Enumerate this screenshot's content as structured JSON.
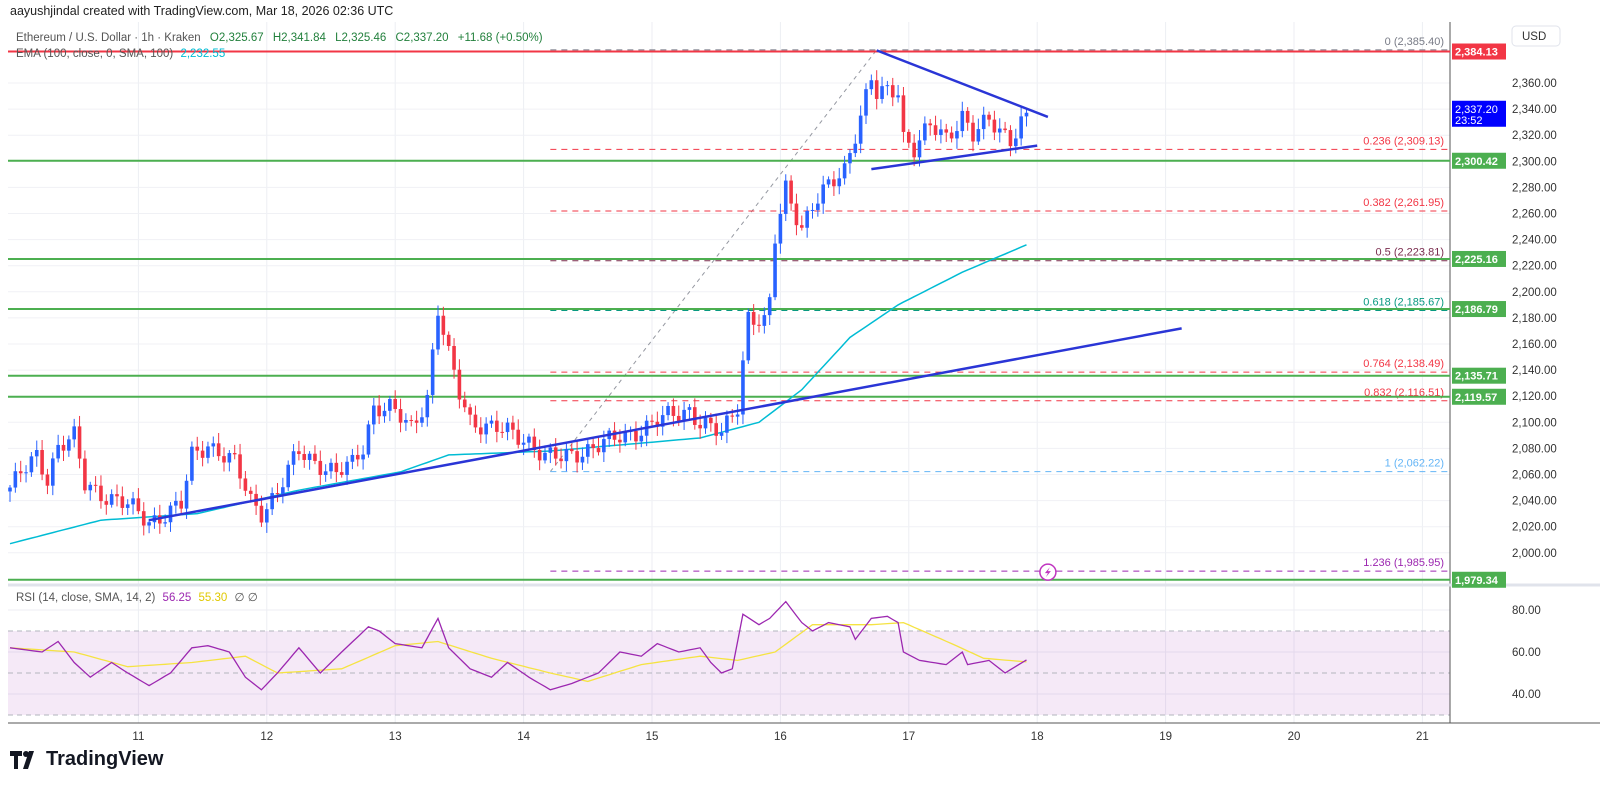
{
  "credit": "aayushjindal created with TradingView.com, Mar 18, 2026 02:36 UTC",
  "legend": {
    "symbol": "Ethereum / U.S. Dollar · 1h · Kraken",
    "open": "O2,325.67",
    "high": "H2,341.84",
    "low": "L2,325.46",
    "close": "C2,337.20",
    "change": "+11.68 (+0.50%)",
    "ema_label": "EMA (100, close, 0, SMA, 100)",
    "ema_value": "2,232.55",
    "rsi_label": "RSI (14, close, SMA, 14, 2)",
    "rsi_value": "56.25",
    "rsi_sma_value": "55.30",
    "rsi_extra": "∅ ∅"
  },
  "currency": "USD",
  "current_price": {
    "price": "2,337.20",
    "countdown": "23:52"
  },
  "logo_text": "TradingView",
  "colors": {
    "up": "#2962ff",
    "down": "#f23645",
    "ema": "#00bcd4",
    "rsi": "#9c27b0",
    "rsi_sma": "#f5e342",
    "support": "#4caf50",
    "trendline": "#2a35d6"
  },
  "chart_data": {
    "type": "candlestick",
    "interval": "1h",
    "price_axis": {
      "range": [
        1975,
        2395
      ],
      "ticks": [
        "2,360.00",
        "2,340.00",
        "2,320.00",
        "2,300.00",
        "2,280.00",
        "2,260.00",
        "2,240.00",
        "2,220.00",
        "2,200.00",
        "2,180.00",
        "2,160.00",
        "2,140.00",
        "2,120.00",
        "2,100.00",
        "2,080.00",
        "2,060.00",
        "2,040.00",
        "2,020.00",
        "2,000.00"
      ]
    },
    "x_ticks": [
      "11",
      "12",
      "13",
      "14",
      "15",
      "16",
      "17",
      "18",
      "19",
      "20",
      "21"
    ],
    "close_path": [
      [
        "10 04:00",
        2050
      ],
      [
        "10 09:00",
        2074
      ],
      [
        "10 11:00",
        2058
      ],
      [
        "10 13:00",
        2082
      ],
      [
        "10 16:00",
        2088
      ],
      [
        "10 18:00",
        2052
      ],
      [
        "10 21:00",
        2046
      ],
      [
        "11 02:00",
        2036
      ],
      [
        "11 06:00",
        2024
      ],
      [
        "11 12:00",
        2036
      ],
      [
        "11 14:00",
        2074
      ],
      [
        "11 17:00",
        2084
      ],
      [
        "11 22:00",
        2068
      ],
      [
        "12 01:00",
        2040
      ],
      [
        "12 03:00",
        2032
      ],
      [
        "12 06:00",
        2046
      ],
      [
        "12 10:00",
        2078
      ],
      [
        "12 14:00",
        2068
      ],
      [
        "12 17:00",
        2060
      ],
      [
        "12 20:00",
        2068
      ],
      [
        "12 22:00",
        2082
      ],
      [
        "13 00:00",
        2112
      ],
      [
        "13 03:00",
        2110
      ],
      [
        "13 07:00",
        2096
      ],
      [
        "13 10:00",
        2120
      ],
      [
        "13 12:00",
        2186
      ],
      [
        "13 14:00",
        2150
      ],
      [
        "13 16:00",
        2122
      ],
      [
        "13 18:00",
        2102
      ],
      [
        "13 22:00",
        2096
      ],
      [
        "14 01:00",
        2092
      ],
      [
        "14 05:00",
        2086
      ],
      [
        "14 08:00",
        2074
      ],
      [
        "14 11:00",
        2072
      ],
      [
        "14 16:00",
        2080
      ],
      [
        "14 20:00",
        2085
      ],
      [
        "15 02:00",
        2095
      ],
      [
        "15 07:00",
        2104
      ],
      [
        "15 11:00",
        2110
      ],
      [
        "15 13:00",
        2100
      ],
      [
        "15 17:00",
        2090
      ],
      [
        "15 20:00",
        2114
      ],
      [
        "15 22:00",
        2182
      ],
      [
        "16 01:00",
        2175
      ],
      [
        "16 02:00",
        2190
      ],
      [
        "16 03:00",
        2240
      ],
      [
        "16 05:00",
        2280
      ],
      [
        "16 08:00",
        2250
      ],
      [
        "16 10:00",
        2265
      ],
      [
        "16 13:00",
        2280
      ],
      [
        "16 16:00",
        2295
      ],
      [
        "16 18:00",
        2322
      ],
      [
        "16 21:00",
        2362
      ],
      [
        "16 22:00",
        2350
      ],
      [
        "17 02:00",
        2356
      ],
      [
        "17 03:00",
        2320
      ],
      [
        "17 05:00",
        2310
      ],
      [
        "17 08:00",
        2326
      ],
      [
        "17 11:00",
        2318
      ],
      [
        "17 14:00",
        2336
      ],
      [
        "17 16:00",
        2320
      ],
      [
        "17 19:00",
        2330
      ],
      [
        "17 23:00",
        2318
      ],
      [
        "18 02:00",
        2337.2
      ]
    ],
    "ema100_path": [
      [
        "10 04:00",
        2007
      ],
      [
        "10 21:00",
        2025
      ],
      [
        "11 15:00",
        2030
      ],
      [
        "12 10:00",
        2048
      ],
      [
        "13 05:00",
        2062
      ],
      [
        "13 14:00",
        2075
      ],
      [
        "14 09:00",
        2078
      ],
      [
        "15 13:00",
        2088
      ],
      [
        "16 00:00",
        2100
      ],
      [
        "16 08:00",
        2125
      ],
      [
        "16 17:00",
        2165
      ],
      [
        "17 02:00",
        2190
      ],
      [
        "17 14:00",
        2215
      ],
      [
        "18 02:00",
        2236
      ]
    ],
    "horizontal_levels": [
      {
        "price": 2384.13,
        "label": "2,384.13",
        "color": "#f23645"
      },
      {
        "price": 2300.42,
        "label": "2,300.42",
        "color": "#4caf50"
      },
      {
        "price": 2225.16,
        "label": "2,225.16",
        "color": "#4caf50"
      },
      {
        "price": 2186.79,
        "label": "2,186.79",
        "color": "#4caf50"
      },
      {
        "price": 2135.71,
        "label": "2,135.71",
        "color": "#4caf50"
      },
      {
        "price": 2119.57,
        "label": "2,119.57",
        "color": "#4caf50"
      },
      {
        "price": 1979.34,
        "label": "1,979.34",
        "color": "#4caf50"
      }
    ],
    "fibonacci": {
      "from": [
        "14 09:00",
        2062.22
      ],
      "to": [
        "16 22:00",
        2385.4
      ],
      "levels": [
        {
          "ratio": "0",
          "price": 2385.4,
          "label": "0 (2,385.40)",
          "color": "#787b86"
        },
        {
          "ratio": "0.236",
          "price": 2309.13,
          "label": "0.236 (2,309.13)",
          "color": "#f23645"
        },
        {
          "ratio": "0.382",
          "price": 2261.95,
          "label": "0.382 (2,261.95)",
          "color": "#f23645"
        },
        {
          "ratio": "0.5",
          "price": 2223.81,
          "label": "0.5 (2,223.81)",
          "color": "#7b2d4f"
        },
        {
          "ratio": "0.618",
          "price": 2185.67,
          "label": "0.618 (2,185.67)",
          "color": "#089981"
        },
        {
          "ratio": "0.764",
          "price": 2138.49,
          "label": "0.764 (2,138.49)",
          "color": "#f23645"
        },
        {
          "ratio": "0.832",
          "price": 2116.51,
          "label": "0.832 (2,116.51)",
          "color": "#f23645"
        },
        {
          "ratio": "1",
          "price": 2062.22,
          "label": "1 (2,062.22)",
          "color": "#64b5f6"
        },
        {
          "ratio": "1.236",
          "price": 1985.95,
          "label": "1.236 (1,985.95)",
          "color": "#9c27b0"
        }
      ]
    },
    "trendlines": [
      {
        "from": [
          "11 06:00",
          2025
        ],
        "to": [
          "19 07:00",
          2172
        ]
      },
      {
        "from": [
          "16 21:00",
          2294
        ],
        "to": [
          "18 04:00",
          2312
        ]
      },
      {
        "from": [
          "16 22:00",
          2385
        ],
        "to": [
          "18 06:00",
          2334
        ]
      }
    ],
    "rsi": {
      "axis_ticks": [
        "80.00",
        "60.00",
        "40.00"
      ],
      "band": [
        30,
        70
      ],
      "midline": 50,
      "path": [
        [
          "10 04:00",
          62
        ],
        [
          "10 10:00",
          60
        ],
        [
          "10 13:00",
          65
        ],
        [
          "10 16:00",
          55
        ],
        [
          "10 19:00",
          48
        ],
        [
          "10 23:00",
          55
        ],
        [
          "11 02:00",
          50
        ],
        [
          "11 06:00",
          44
        ],
        [
          "11 10:00",
          50
        ],
        [
          "11 14:00",
          62
        ],
        [
          "11 17:00",
          63
        ],
        [
          "11 21:00",
          60
        ],
        [
          "12 00:00",
          48
        ],
        [
          "12 03:00",
          42
        ],
        [
          "12 06:00",
          50
        ],
        [
          "12 10:00",
          62
        ],
        [
          "12 14:00",
          50
        ],
        [
          "12 18:00",
          60
        ],
        [
          "12 23:00",
          72
        ],
        [
          "13 01:00",
          70
        ],
        [
          "13 04:00",
          64
        ],
        [
          "13 09:00",
          62
        ],
        [
          "13 12:00",
          76
        ],
        [
          "13 14:00",
          62
        ],
        [
          "13 18:00",
          52
        ],
        [
          "13 22:00",
          48
        ],
        [
          "14 01:00",
          55
        ],
        [
          "14 05:00",
          48
        ],
        [
          "14 09:00",
          42
        ],
        [
          "14 13:00",
          45
        ],
        [
          "14 18:00",
          50
        ],
        [
          "14 22:00",
          60
        ],
        [
          "15 02:00",
          58
        ],
        [
          "15 05:00",
          64
        ],
        [
          "15 09:00",
          60
        ],
        [
          "15 13:00",
          62
        ],
        [
          "15 15:00",
          55
        ],
        [
          "15 17:00",
          50
        ],
        [
          "15 19:00",
          52
        ],
        [
          "15 21:00",
          78
        ],
        [
          "16 00:00",
          73
        ],
        [
          "16 02:00",
          76
        ],
        [
          "16 05:00",
          84
        ],
        [
          "16 08:00",
          74
        ],
        [
          "16 10:00",
          70
        ],
        [
          "16 13:00",
          74
        ],
        [
          "16 17:00",
          72
        ],
        [
          "16 18:00",
          66
        ],
        [
          "16 21:00",
          76
        ],
        [
          "17 00:00",
          77
        ],
        [
          "17 02:00",
          74
        ],
        [
          "17 03:00",
          60
        ],
        [
          "17 06:00",
          56
        ],
        [
          "17 11:00",
          54
        ],
        [
          "17 14:00",
          60
        ],
        [
          "17 15:00",
          54
        ],
        [
          "17 19:00",
          56
        ],
        [
          "17 22:00",
          50
        ],
        [
          "18 02:00",
          56.25
        ]
      ],
      "sma_path": [
        [
          "10 04:00",
          62
        ],
        [
          "10 16:00",
          60
        ],
        [
          "11 02:00",
          53
        ],
        [
          "11 14:00",
          55
        ],
        [
          "12 00:00",
          58
        ],
        [
          "12 06:00",
          50
        ],
        [
          "12 18:00",
          52
        ],
        [
          "13 04:00",
          63
        ],
        [
          "13 12:00",
          65
        ],
        [
          "13 22:00",
          57
        ],
        [
          "14 09:00",
          50
        ],
        [
          "14 16:00",
          46
        ],
        [
          "15 02:00",
          54
        ],
        [
          "15 13:00",
          58
        ],
        [
          "15 20:00",
          56
        ],
        [
          "16 03:00",
          60
        ],
        [
          "16 10:00",
          73
        ],
        [
          "16 21:00",
          73
        ],
        [
          "17 03:00",
          74
        ],
        [
          "17 12:00",
          64
        ],
        [
          "17 18:00",
          57
        ],
        [
          "18 02:00",
          55.3
        ]
      ]
    }
  }
}
